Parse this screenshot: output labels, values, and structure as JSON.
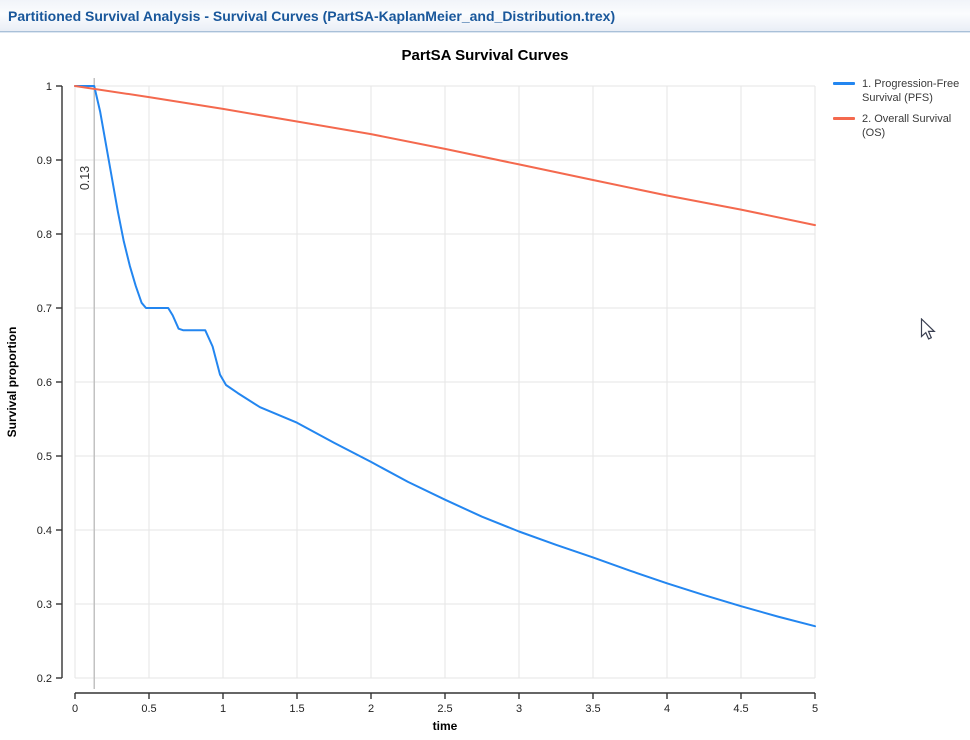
{
  "window": {
    "title": "Partitioned Survival Analysis - Survival Curves (PartSA-KaplanMeier_and_Distribution.trex)"
  },
  "colors": {
    "pfs_line": "#2386f0",
    "os_line": "#f4694e",
    "grid": "#e6e6e6",
    "annotation_line": "#c2c2c2",
    "axis": "#333333",
    "tick_text": "#222222",
    "title_text": "#000000",
    "header_text": "#19579b"
  },
  "chart_data": {
    "type": "line",
    "title": "PartSA Survival Curves",
    "xlabel": "time",
    "ylabel": "Survival proportion",
    "xlim": [
      0,
      5
    ],
    "ylim": [
      0.2,
      1.0
    ],
    "xticks": [
      0,
      0.5,
      1,
      1.5,
      2,
      2.5,
      3,
      3.5,
      4,
      4.5,
      5
    ],
    "yticks": [
      1,
      0.9,
      0.8,
      0.7,
      0.6,
      0.5,
      0.4,
      0.3,
      0.2
    ],
    "grid": true,
    "legend_position": "top-right",
    "annotation": {
      "x": 0.13,
      "label": "0.13"
    },
    "series": [
      {
        "name": "1. Progression-Free Survival (PFS)",
        "color": "#2386f0",
        "x": [
          0,
          0.13,
          0.17,
          0.21,
          0.25,
          0.29,
          0.33,
          0.37,
          0.41,
          0.45,
          0.48,
          0.63,
          0.66,
          0.7,
          0.73,
          0.88,
          0.93,
          0.98,
          1.02,
          1.1,
          1.25,
          1.5,
          1.75,
          2.0,
          2.25,
          2.5,
          2.75,
          3.0,
          3.25,
          3.5,
          3.75,
          4.0,
          4.25,
          4.5,
          4.75,
          5.0
        ],
        "y": [
          1.0,
          1.0,
          0.965,
          0.92,
          0.875,
          0.83,
          0.79,
          0.757,
          0.73,
          0.707,
          0.7,
          0.7,
          0.69,
          0.672,
          0.67,
          0.67,
          0.648,
          0.61,
          0.596,
          0.585,
          0.566,
          0.545,
          0.518,
          0.492,
          0.465,
          0.441,
          0.418,
          0.398,
          0.38,
          0.363,
          0.345,
          0.328,
          0.312,
          0.297,
          0.283,
          0.27
        ]
      },
      {
        "name": "2. Overall Survival (OS)",
        "color": "#f4694e",
        "x": [
          0,
          0.5,
          1.0,
          1.5,
          2.0,
          2.5,
          3.0,
          3.5,
          4.0,
          4.5,
          5.0
        ],
        "y": [
          1.0,
          0.985,
          0.969,
          0.952,
          0.935,
          0.915,
          0.894,
          0.873,
          0.852,
          0.833,
          0.812
        ]
      }
    ]
  }
}
